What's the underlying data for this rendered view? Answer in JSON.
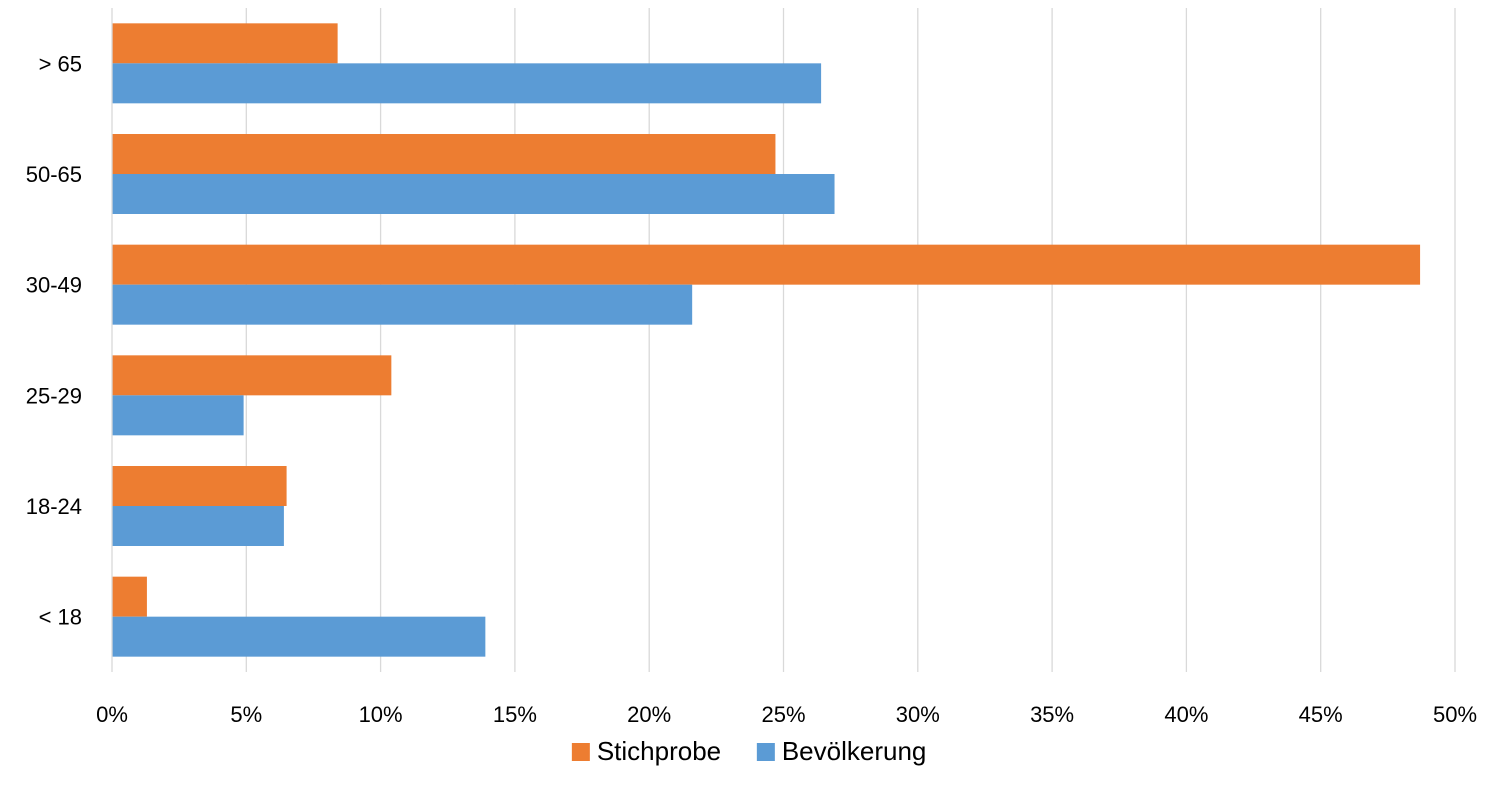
{
  "chart_data": {
    "type": "bar",
    "orientation": "horizontal",
    "categories": [
      "< 18",
      "18-24",
      "25-29",
      "30-49",
      "50-65",
      "> 65"
    ],
    "series": [
      {
        "name": "Stichprobe",
        "color": "#ED7D31",
        "values": [
          1.3,
          6.5,
          10.4,
          48.7,
          24.7,
          8.4
        ]
      },
      {
        "name": "Bevölkerung",
        "color": "#5B9BD5",
        "values": [
          13.9,
          6.4,
          4.9,
          21.6,
          26.9,
          26.4
        ]
      }
    ],
    "x_ticks": [
      "0%",
      "5%",
      "10%",
      "15%",
      "20%",
      "25%",
      "30%",
      "35%",
      "40%",
      "45%",
      "50%"
    ],
    "xlim": [
      0,
      50
    ],
    "x_unit": "%",
    "title": "",
    "xlabel": "",
    "ylabel": "",
    "grid": "vertical",
    "legend_position": "bottom"
  }
}
